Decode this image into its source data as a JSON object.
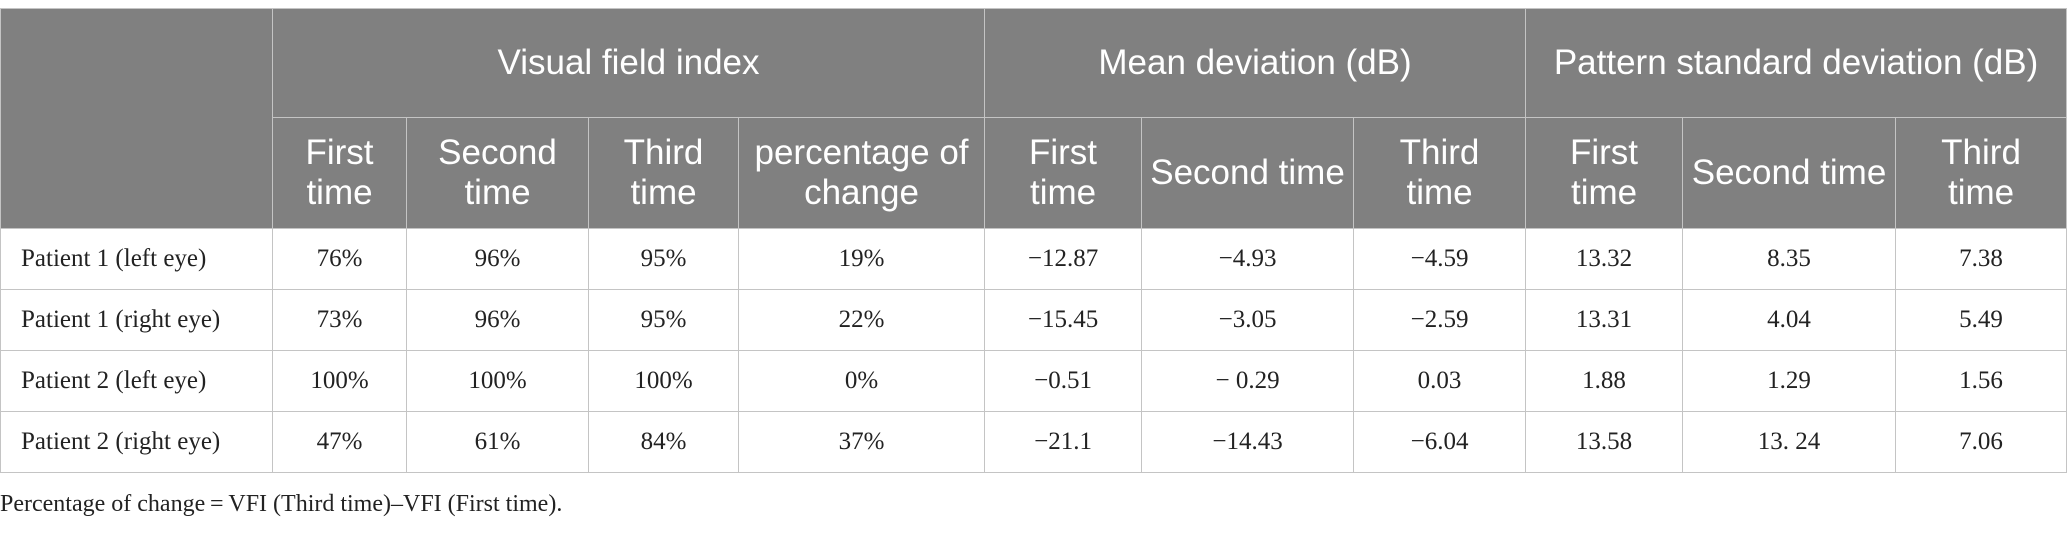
{
  "table": {
    "groups": [
      {
        "label": "Visual field index"
      },
      {
        "label": "Mean deviation (dB)"
      },
      {
        "label": "Pattern standard deviation (dB)"
      }
    ],
    "subheaders": [
      "First time",
      "Second time",
      "Third time",
      "percentage of change",
      "First time",
      "Second time",
      "Third time",
      "First time",
      "Second time",
      "Third time"
    ],
    "rows": [
      {
        "label": "Patient 1 (left eye)",
        "cells": [
          "76%",
          "96%",
          "95%",
          "19%",
          "−12.87",
          "−4.93",
          "−4.59",
          "13.32",
          "8.35",
          "7.38"
        ]
      },
      {
        "label": "Patient 1 (right eye)",
        "cells": [
          "73%",
          "96%",
          "95%",
          "22%",
          "−15.45",
          "−3.05",
          "−2.59",
          "13.31",
          "4.04",
          "5.49"
        ]
      },
      {
        "label": "Patient 2 (left eye)",
        "cells": [
          "100%",
          "100%",
          "100%",
          "0%",
          "−0.51",
          "− 0.29",
          "0.03",
          "1.88",
          "1.29",
          "1.56"
        ]
      },
      {
        "label": "Patient 2 (right eye)",
        "cells": [
          "47%",
          "61%",
          "84%",
          "37%",
          "−21.1",
          "−14.43",
          "−6.04",
          "13.58",
          "13. 24",
          "7.06"
        ]
      }
    ]
  },
  "footnote": "Percentage of change = VFI (Third time)–VFI (First time)."
}
